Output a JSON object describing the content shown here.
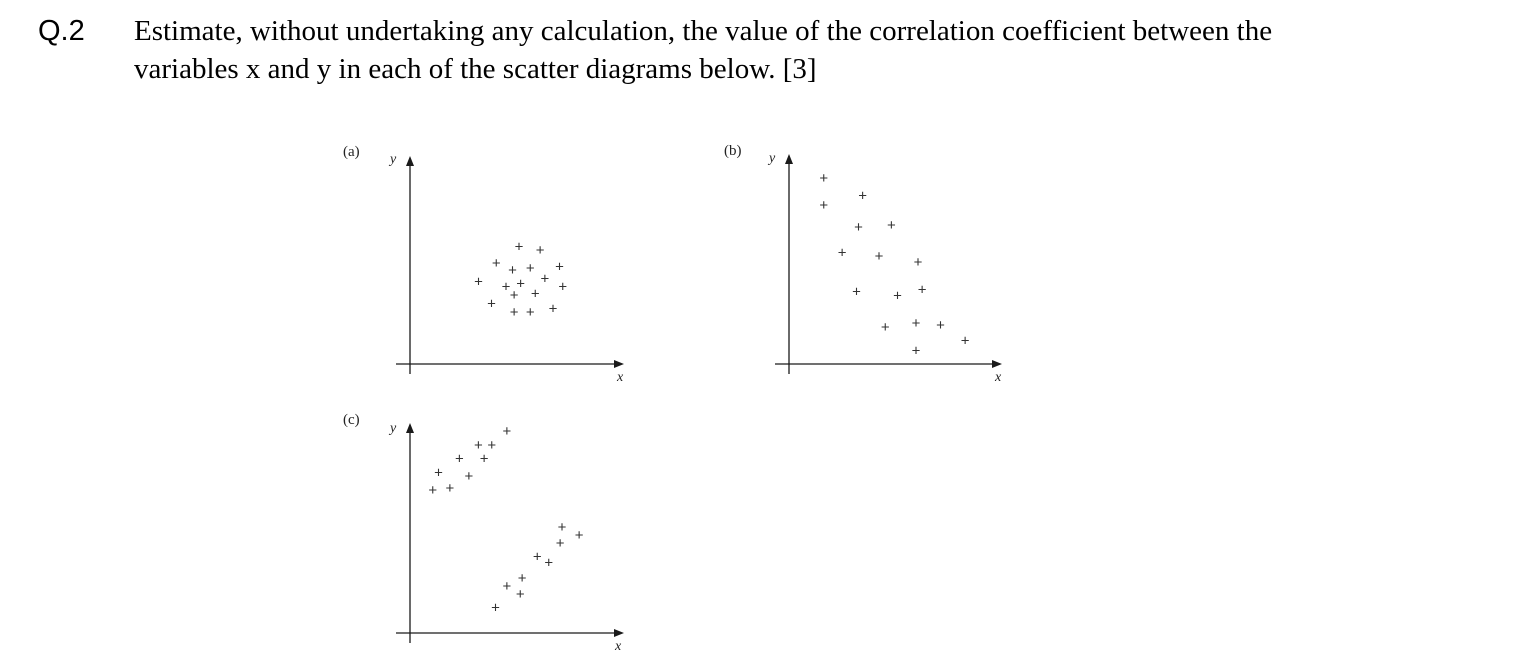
{
  "question": {
    "number": "Q.2",
    "lines": [
      "Estimate, without undertaking any calculation, the value of the correlation coefficient between the",
      "variables x and y in each of the scatter diagrams below. [3]"
    ]
  },
  "marker_symbol": "+",
  "chart_data": [
    {
      "type": "scatter",
      "panel_label": "(a)",
      "xlabel": "x",
      "ylabel": "y",
      "xlim": [
        0,
        10
      ],
      "ylim": [
        0,
        10
      ],
      "grid": false,
      "points": [
        [
          5.0,
          7.0
        ],
        [
          6.3,
          6.8
        ],
        [
          3.6,
          6.0
        ],
        [
          4.6,
          5.6
        ],
        [
          5.7,
          5.7
        ],
        [
          7.5,
          5.8
        ],
        [
          2.5,
          4.9
        ],
        [
          4.2,
          4.6
        ],
        [
          5.1,
          4.8
        ],
        [
          6.6,
          5.1
        ],
        [
          7.7,
          4.6
        ],
        [
          4.7,
          4.1
        ],
        [
          6.0,
          4.2
        ],
        [
          3.3,
          3.6
        ],
        [
          4.7,
          3.1
        ],
        [
          5.7,
          3.1
        ],
        [
          7.1,
          3.3
        ]
      ]
    },
    {
      "type": "scatter",
      "panel_label": "(b)",
      "xlabel": "x",
      "ylabel": "y",
      "xlim": [
        0,
        10
      ],
      "ylim": [
        0,
        10
      ],
      "grid": false,
      "points": [
        [
          1.4,
          9.5
        ],
        [
          3.3,
          8.6
        ],
        [
          1.4,
          8.1
        ],
        [
          3.1,
          7.0
        ],
        [
          4.7,
          7.1
        ],
        [
          2.3,
          5.7
        ],
        [
          4.1,
          5.5
        ],
        [
          6.0,
          5.2
        ],
        [
          3.0,
          3.7
        ],
        [
          5.0,
          3.5
        ],
        [
          6.2,
          3.8
        ],
        [
          4.4,
          1.9
        ],
        [
          5.9,
          2.1
        ],
        [
          7.1,
          2.0
        ],
        [
          8.3,
          1.2
        ],
        [
          5.9,
          0.7
        ]
      ]
    },
    {
      "type": "scatter",
      "panel_label": "(c)",
      "xlabel": "x",
      "ylabel": "y",
      "xlim": [
        0,
        10
      ],
      "ylim": [
        0,
        10
      ],
      "grid": false,
      "points": [
        [
          5.1,
          10.3
        ],
        [
          3.6,
          9.6
        ],
        [
          4.3,
          9.6
        ],
        [
          2.6,
          8.9
        ],
        [
          3.9,
          8.9
        ],
        [
          1.5,
          8.2
        ],
        [
          3.1,
          8.0
        ],
        [
          1.2,
          7.3
        ],
        [
          2.1,
          7.4
        ],
        [
          8.0,
          5.4
        ],
        [
          8.9,
          5.0
        ],
        [
          7.9,
          4.6
        ],
        [
          6.7,
          3.9
        ],
        [
          7.3,
          3.6
        ],
        [
          5.9,
          2.8
        ],
        [
          5.1,
          2.4
        ],
        [
          5.8,
          2.0
        ],
        [
          4.5,
          1.3
        ]
      ]
    }
  ]
}
